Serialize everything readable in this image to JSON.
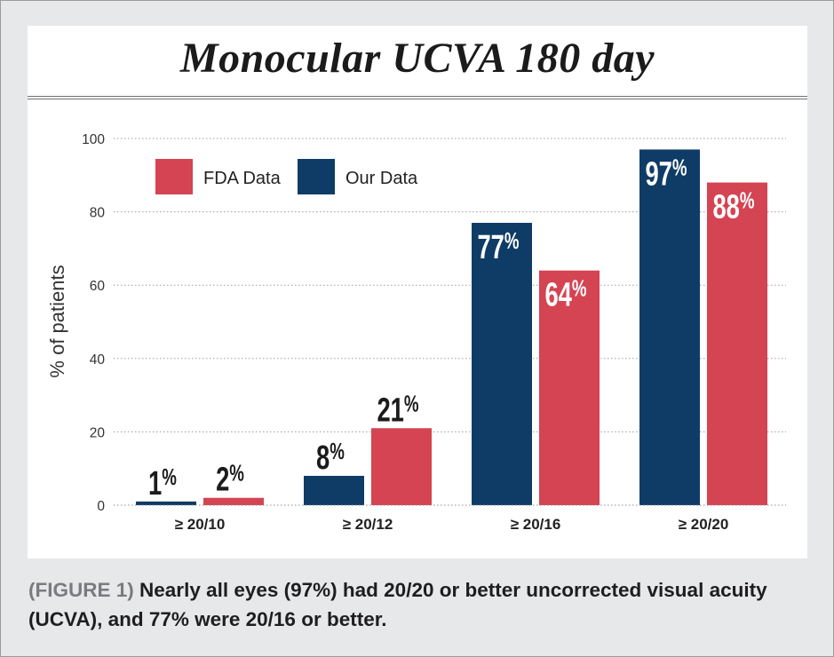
{
  "chart_data": {
    "type": "bar",
    "title": "Monocular UCVA 180 day",
    "xlabel": "",
    "ylabel": "% of patients",
    "ylim": [
      0,
      100
    ],
    "yticks": [
      0,
      20,
      40,
      60,
      80,
      100
    ],
    "grid": true,
    "legend_position": "top-left",
    "categories": [
      "≥ 20/10",
      "≥ 20/12",
      "≥ 20/16",
      "≥ 20/20"
    ],
    "series": [
      {
        "name": "Our Data",
        "color": "#0e3c66",
        "values": [
          1,
          8,
          77,
          97
        ],
        "labels": [
          "1%",
          "8%",
          "77%",
          "97%"
        ]
      },
      {
        "name": "FDA Data",
        "color": "#d44452",
        "values": [
          2,
          21,
          64,
          88
        ],
        "labels": [
          "2%",
          "21%",
          "64%",
          "88%"
        ]
      }
    ],
    "legend_order": [
      "FDA Data",
      "Our Data"
    ]
  },
  "caption": {
    "label": "(FIGURE 1)",
    "text": "Nearly all eyes (97%) had 20/20 or better uncorrected visual acuity (UCVA), and 77% were 20/16 or better."
  }
}
